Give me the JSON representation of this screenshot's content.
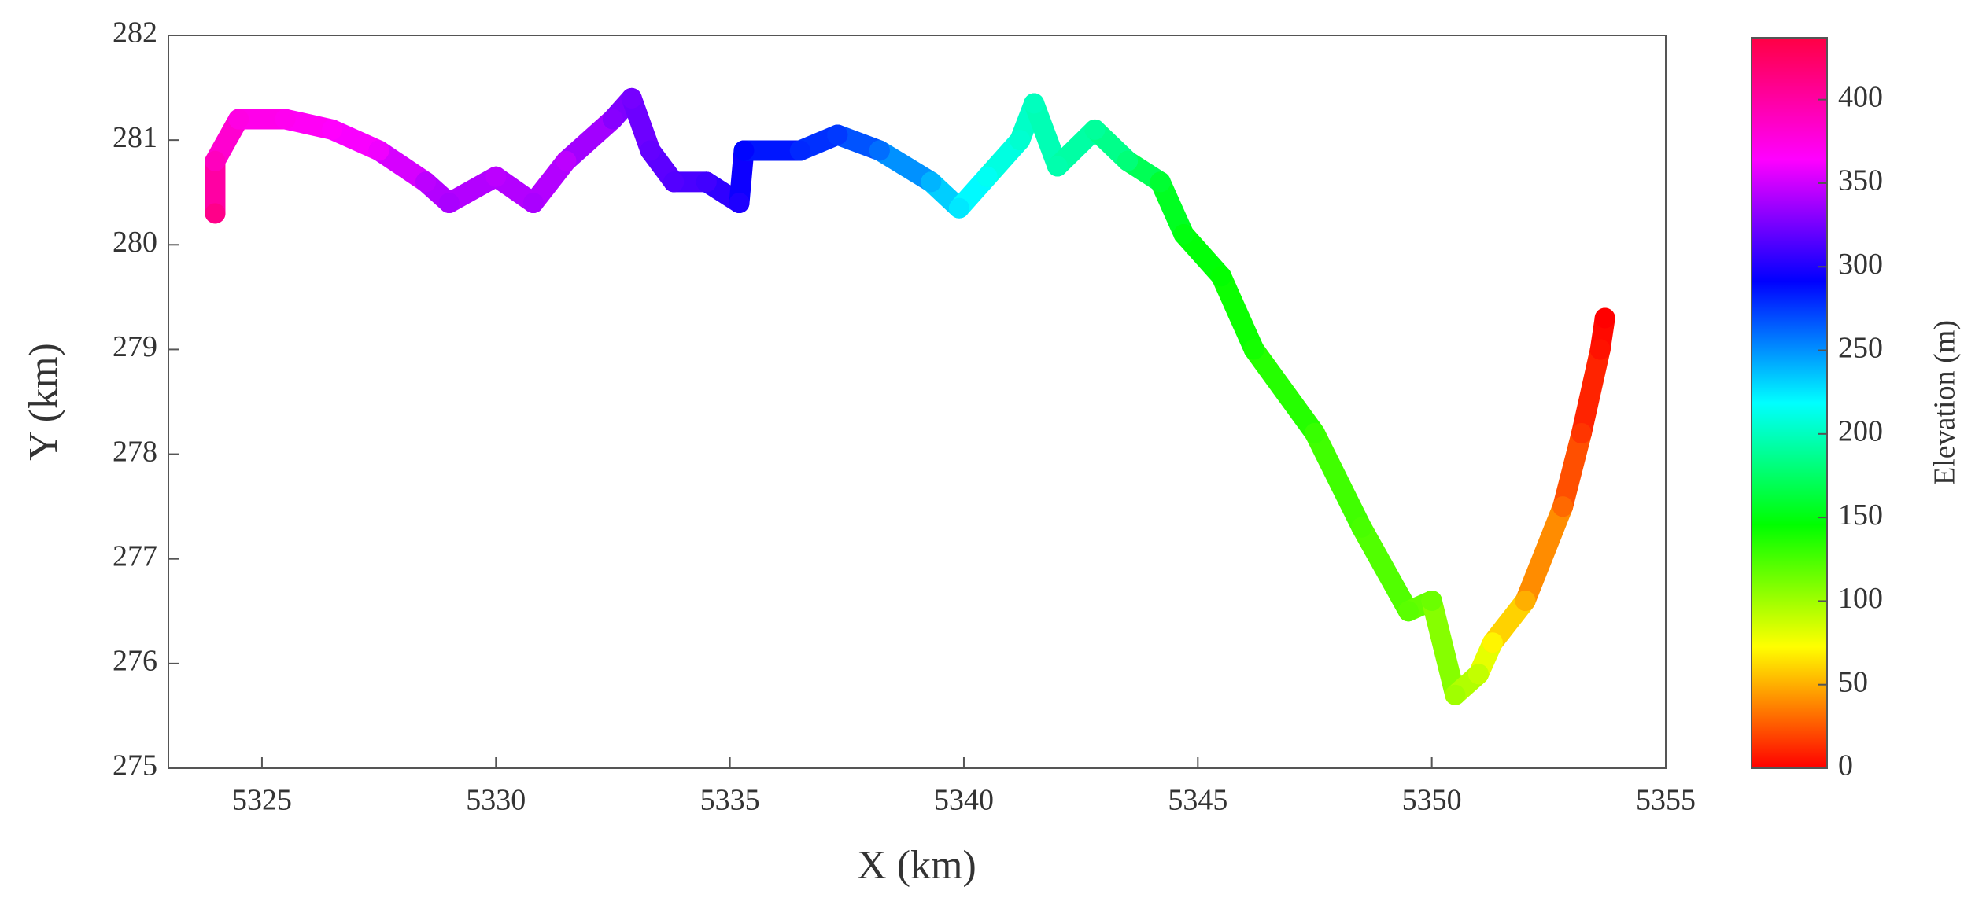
{
  "chart_data": {
    "type": "track",
    "x_label": "X (km)",
    "y_label": "Y (km)",
    "colorbar_label": "Elevation (m)",
    "x": [
      5324.0,
      5324.0,
      5324.5,
      5325.5,
      5326.5,
      5327.5,
      5328.5,
      5329.0,
      5330.0,
      5330.8,
      5331.5,
      5332.5,
      5332.9,
      5333.3,
      5333.8,
      5334.5,
      5335.2,
      5335.3,
      5336.5,
      5337.3,
      5338.2,
      5339.3,
      5339.9,
      5340.5,
      5341.2,
      5341.5,
      5342.0,
      5342.8,
      5343.5,
      5344.2,
      5344.7,
      5345.5,
      5346.2,
      5347.5,
      5348.5,
      5349.5,
      5350.0,
      5350.5,
      5351.0,
      5351.3,
      5352.0,
      5352.8,
      5353.2,
      5353.6,
      5353.7
    ],
    "y": [
      280.3,
      280.8,
      281.2,
      281.2,
      281.1,
      280.9,
      280.6,
      280.4,
      280.65,
      280.4,
      280.8,
      281.2,
      281.4,
      280.9,
      280.6,
      280.6,
      280.4,
      280.9,
      280.9,
      281.05,
      280.9,
      280.6,
      280.35,
      280.65,
      281.0,
      281.35,
      280.75,
      281.1,
      280.8,
      280.6,
      280.1,
      279.7,
      279.0,
      278.2,
      277.3,
      276.5,
      276.6,
      275.7,
      275.9,
      276.2,
      276.6,
      277.5,
      278.2,
      279.0,
      279.3
    ],
    "elevation": [
      410,
      390,
      375,
      370,
      365,
      360,
      345,
      340,
      345,
      340,
      345,
      330,
      325,
      320,
      315,
      310,
      300,
      290,
      280,
      275,
      260,
      240,
      225,
      215,
      205,
      200,
      195,
      190,
      180,
      160,
      150,
      145,
      140,
      130,
      125,
      120,
      115,
      100,
      90,
      70,
      50,
      30,
      15,
      5,
      0
    ],
    "xlim": [
      5323,
      5355
    ],
    "xticks": [
      5325,
      5330,
      5335,
      5340,
      5345,
      5350,
      5355
    ],
    "ylim": [
      275,
      282
    ],
    "yticks": [
      275,
      276,
      277,
      278,
      279,
      280,
      281,
      282
    ],
    "clim": [
      0,
      437
    ],
    "cticks": [
      0,
      50,
      100,
      150,
      200,
      250,
      300,
      350,
      400
    ],
    "colormap": [
      "#ff0000",
      "#ffff00",
      "#00ff00",
      "#00ffff",
      "#0000ff",
      "#ff00ff",
      "#ff0044"
    ]
  }
}
